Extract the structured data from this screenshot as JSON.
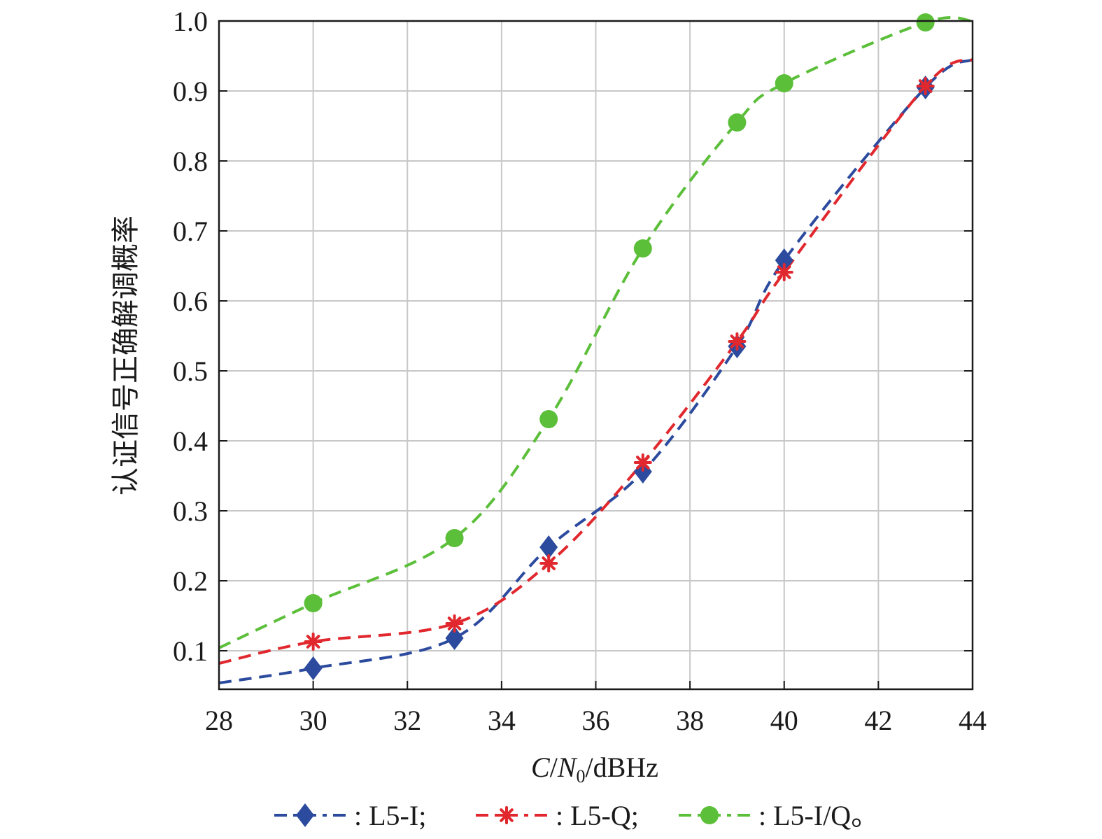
{
  "chart_data": {
    "type": "line",
    "x_label_parts": {
      "c": "C",
      "slash1": "/",
      "n": "N",
      "sub": "0",
      "unit": "/dBHz"
    },
    "y_label": "认证信号正确解调概率",
    "xlim": [
      28,
      44
    ],
    "ylim": [
      0.045,
      1.0
    ],
    "x_ticks": [
      28,
      30,
      32,
      34,
      36,
      38,
      40,
      42,
      44
    ],
    "y_ticks": [
      0.1,
      0.2,
      0.3,
      0.4,
      0.5,
      0.6,
      0.7,
      0.8,
      0.9,
      1.0
    ],
    "y_tick_labels": [
      "0.1",
      "0.2",
      "0.3",
      "0.4",
      "0.5",
      "0.6",
      "0.7",
      "0.8",
      "0.9",
      "1.0"
    ],
    "grid": true,
    "series": [
      {
        "name": "L5-I",
        "color": "#2c4b9e",
        "marker": "diamond",
        "x": [
          30,
          33,
          35,
          37,
          39,
          40,
          43
        ],
        "y": [
          0.075,
          0.118,
          0.248,
          0.356,
          0.535,
          0.658,
          0.905
        ],
        "curve_x": [
          28,
          30,
          33,
          35,
          37,
          39,
          40,
          43,
          44
        ],
        "curve_y": [
          0.054,
          0.075,
          0.118,
          0.248,
          0.356,
          0.535,
          0.658,
          0.905,
          0.945
        ]
      },
      {
        "name": "L5-Q",
        "color": "#e0282e",
        "marker": "asterisk",
        "x": [
          30,
          33,
          35,
          37,
          39,
          40,
          43
        ],
        "y": [
          0.113,
          0.139,
          0.225,
          0.369,
          0.542,
          0.641,
          0.907
        ],
        "curve_x": [
          28,
          30,
          33,
          35,
          37,
          39,
          40,
          43,
          44
        ],
        "curve_y": [
          0.082,
          0.113,
          0.139,
          0.225,
          0.369,
          0.542,
          0.641,
          0.907,
          0.945
        ]
      },
      {
        "name": "L5-I/Q",
        "color": "#5cbf3a",
        "marker": "circle",
        "x": [
          30,
          33,
          35,
          37,
          39,
          40,
          43
        ],
        "y": [
          0.168,
          0.261,
          0.431,
          0.675,
          0.855,
          0.911,
          0.998
        ],
        "curve_x": [
          28,
          30,
          33,
          35,
          37,
          39,
          40,
          43,
          44
        ],
        "curve_y": [
          0.104,
          0.168,
          0.261,
          0.431,
          0.675,
          0.855,
          0.911,
          0.998,
          1.0
        ]
      }
    ],
    "legend": {
      "placement": "bottom",
      "items": [
        {
          "label": ": L5-I;"
        },
        {
          "label": ": L5-Q;"
        },
        {
          "label": ": L5-I/Q。"
        }
      ]
    }
  }
}
